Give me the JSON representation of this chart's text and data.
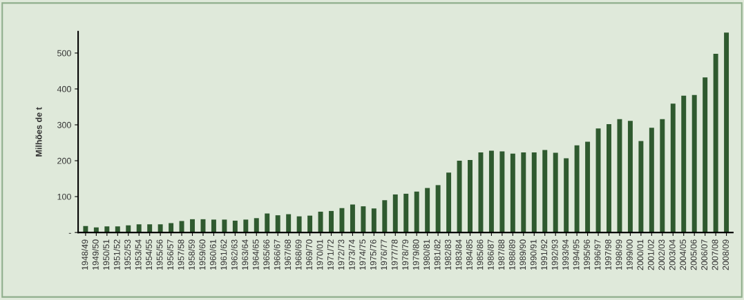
{
  "chart_data": {
    "type": "bar",
    "ylabel": "Milhões de t",
    "categories": [
      "1948/49",
      "1949/50",
      "1950/51",
      "1951/52",
      "1952/53",
      "1953/54",
      "1954/55",
      "1955/56",
      "1956/57",
      "1957/58",
      "1958/59",
      "1959/60",
      "1960/61",
      "1961/62",
      "1962/63",
      "1963/64",
      "1964/65",
      "1965/66",
      "1966/67",
      "1967/68",
      "1968/69",
      "1969/70",
      "1970/01",
      "1971/72",
      "1972/73",
      "1973/74",
      "1974/75",
      "1975/76",
      "1976/77",
      "1977/78",
      "1978/79",
      "1979/80",
      "1980/81",
      "1981/82",
      "1982/83",
      "1983/84",
      "1984/85",
      "1985/86",
      "1986/87",
      "1987/88",
      "1988/89",
      "1989/90",
      "1990/91",
      "1991/92",
      "1992/93",
      "1993/94",
      "1994/95",
      "1995/96",
      "1996/97",
      "1997/98",
      "1998/99",
      "1999/00",
      "2000/01",
      "2001/02",
      "2002/03",
      "2003/04",
      "2004/05",
      "2005/06",
      "2006/07",
      "2007/08",
      "2008/09"
    ],
    "values": [
      18,
      14,
      17,
      17,
      20,
      23,
      23,
      23,
      26,
      32,
      37,
      37,
      36,
      36,
      33,
      36,
      40,
      53,
      48,
      51,
      45,
      47,
      58,
      60,
      68,
      78,
      73,
      67,
      90,
      106,
      108,
      114,
      124,
      132,
      167,
      200,
      202,
      223,
      228,
      226,
      220,
      223,
      223,
      230,
      222,
      207,
      243,
      253,
      290,
      302,
      316,
      311,
      255,
      292,
      316,
      359,
      381,
      383,
      432,
      498,
      557
    ],
    "color": "#2f5a2f",
    "ylim": [
      0,
      560
    ],
    "yticks": [
      {
        "value": 0,
        "label": "-"
      },
      100,
      200,
      300,
      400,
      500
    ],
    "grid": false,
    "legend": false
  }
}
